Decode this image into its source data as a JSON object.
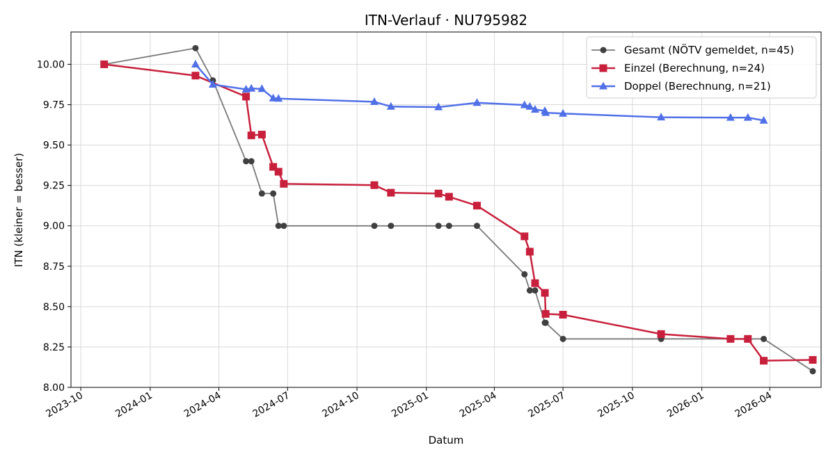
{
  "chart_data": {
    "type": "line",
    "title": "ITN-Verlauf · NU795982",
    "xlabel": "Datum",
    "ylabel": "ITN  (kleiner = besser)",
    "x_type": "date",
    "xlim": [
      "2023-09-18",
      "2026-06-08"
    ],
    "ylim": [
      8.0,
      10.2
    ],
    "x_ticks": [
      "2023-10-01",
      "2024-01-01",
      "2024-04-01",
      "2024-07-01",
      "2024-10-01",
      "2025-01-01",
      "2025-04-01",
      "2025-07-01",
      "2025-10-01",
      "2026-01-01",
      "2026-04-01"
    ],
    "x_tick_labels": [
      "2023-10",
      "2024-01",
      "2024-04",
      "2024-07",
      "2024-10",
      "2025-01",
      "2025-04",
      "2025-07",
      "2025-10",
      "2026-01",
      "2026-04"
    ],
    "y_ticks": [
      8.0,
      8.25,
      8.5,
      8.75,
      9.0,
      9.25,
      9.5,
      9.75,
      10.0
    ],
    "y_tick_labels": [
      "8.00",
      "8.25",
      "8.50",
      "8.75",
      "9.00",
      "9.25",
      "9.50",
      "9.75",
      "10.00"
    ],
    "grid": true,
    "legend_position": "top-right",
    "series": [
      {
        "name": "Gesamt (NÖTV gemeldet, n=45)",
        "color": "#404040",
        "marker": "circle",
        "points": [
          [
            "2023-11-01",
            10.0
          ],
          [
            "2024-03-01",
            10.1
          ],
          [
            "2024-03-24",
            9.9
          ],
          [
            "2024-05-07",
            9.4
          ],
          [
            "2024-05-14",
            9.4
          ],
          [
            "2024-05-28",
            9.2
          ],
          [
            "2024-06-12",
            9.2
          ],
          [
            "2024-06-19",
            9.0
          ],
          [
            "2024-06-26",
            9.0
          ],
          [
            "2024-10-24",
            9.0
          ],
          [
            "2024-11-15",
            9.0
          ],
          [
            "2025-01-17",
            9.0
          ],
          [
            "2025-01-31",
            9.0
          ],
          [
            "2025-03-09",
            9.0
          ],
          [
            "2025-05-11",
            8.7
          ],
          [
            "2025-05-18",
            8.6
          ],
          [
            "2025-05-25",
            8.6
          ],
          [
            "2025-06-07",
            8.4
          ],
          [
            "2025-06-08",
            8.4
          ],
          [
            "2025-07-01",
            8.3
          ],
          [
            "2025-11-08",
            8.3
          ],
          [
            "2026-02-08",
            8.3
          ],
          [
            "2026-03-03",
            8.3
          ],
          [
            "2026-03-24",
            8.3
          ],
          [
            "2026-05-28",
            8.1
          ]
        ]
      },
      {
        "name": "Einzel (Berechnung, n=24)",
        "color": "#c8203c",
        "marker": "square",
        "points": [
          [
            "2023-11-01",
            10.0
          ],
          [
            "2024-03-01",
            9.93
          ],
          [
            "2024-05-07",
            9.8
          ],
          [
            "2024-05-14",
            9.56
          ],
          [
            "2024-05-28",
            9.565
          ],
          [
            "2024-06-12",
            9.365
          ],
          [
            "2024-06-19",
            9.335
          ],
          [
            "2024-06-26",
            9.26
          ],
          [
            "2024-10-24",
            9.252
          ],
          [
            "2024-11-15",
            9.205
          ],
          [
            "2025-01-17",
            9.2
          ],
          [
            "2025-01-31",
            9.18
          ],
          [
            "2025-03-09",
            9.125
          ],
          [
            "2025-05-11",
            8.935
          ],
          [
            "2025-05-18",
            8.84
          ],
          [
            "2025-05-25",
            8.645
          ],
          [
            "2025-06-07",
            8.585
          ],
          [
            "2025-06-08",
            8.455
          ],
          [
            "2025-07-01",
            8.45
          ],
          [
            "2025-11-08",
            8.33
          ],
          [
            "2026-02-08",
            8.3
          ],
          [
            "2026-03-03",
            8.3
          ],
          [
            "2026-03-24",
            8.165
          ],
          [
            "2026-05-28",
            8.17
          ]
        ]
      },
      {
        "name": "Doppel (Berechnung, n=21)",
        "color": "#5070e8",
        "marker": "triangle",
        "points": [
          [
            "2024-03-01",
            10.0
          ],
          [
            "2024-03-24",
            9.875
          ],
          [
            "2024-05-07",
            9.845
          ],
          [
            "2024-05-14",
            9.85
          ],
          [
            "2024-05-28",
            9.848
          ],
          [
            "2024-06-12",
            9.79
          ],
          [
            "2024-06-19",
            9.788
          ],
          [
            "2024-10-24",
            9.768
          ],
          [
            "2024-11-15",
            9.738
          ],
          [
            "2025-01-17",
            9.735
          ],
          [
            "2025-03-09",
            9.762
          ],
          [
            "2025-05-11",
            9.748
          ],
          [
            "2025-05-18",
            9.738
          ],
          [
            "2025-05-25",
            9.72
          ],
          [
            "2025-06-07",
            9.712
          ],
          [
            "2025-06-08",
            9.7
          ],
          [
            "2025-07-01",
            9.695
          ],
          [
            "2025-11-08",
            9.672
          ],
          [
            "2026-02-08",
            9.67
          ],
          [
            "2026-03-03",
            9.67
          ],
          [
            "2026-03-24",
            9.652
          ]
        ]
      }
    ]
  }
}
